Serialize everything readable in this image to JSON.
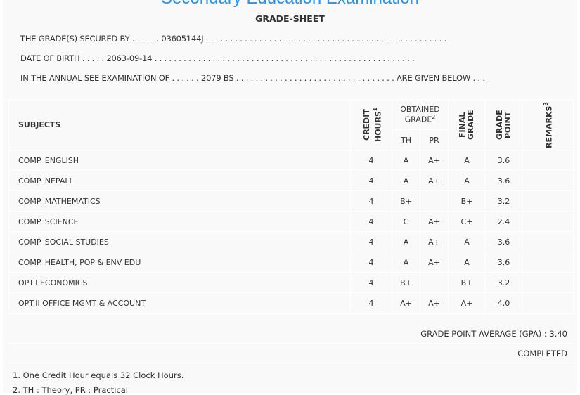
{
  "header": {
    "exam_title": "Secondary Education Examination",
    "sheet_title": "GRADE-SHEET"
  },
  "info": {
    "secured_by": "THE GRADE(S) SECURED BY . . . . . . 03605144J . . . . . . . . . . . . . . . . . . . . . . . . . . . . . . . . . . . . . . . . . . . . . . . . . .",
    "dob": "DATE OF BIRTH . . . . . 2063-09-14 . . . . . . . . . . . . . . . . . . . . . . . . . . . . . . . . . . . . . . . . . . . . . . . . . . . . . .",
    "exam": "IN THE ANNUAL SEE EXAMINATION OF . . . . . . 2079 BS . . . . . . . . . . . . . . . . . . . . . . . . . . . . . . . . . ARE GIVEN BELOW . . ."
  },
  "columns": {
    "subjects": "SUBJECTS",
    "credit": "CREDIT HOURS",
    "credit_sup": "1",
    "obtained": "OBTAINED GRADE",
    "obtained_sup": "2",
    "th": "TH",
    "pr": "PR",
    "final": "FINAL GRADE",
    "gp": "GRADE POINT",
    "remarks": "REMARKS",
    "remarks_sup": "3"
  },
  "rows": [
    {
      "subject": "COMP. ENGLISH",
      "credit": "4",
      "th": "A",
      "pr": "A+",
      "final": "A",
      "gp": "3.6",
      "remarks": ""
    },
    {
      "subject": "COMP. NEPALI",
      "credit": "4",
      "th": "A",
      "pr": "A+",
      "final": "A",
      "gp": "3.6",
      "remarks": ""
    },
    {
      "subject": "COMP. MATHEMATICS",
      "credit": "4",
      "th": "B+",
      "pr": "",
      "final": "B+",
      "gp": "3.2",
      "remarks": ""
    },
    {
      "subject": "COMP. SCIENCE",
      "credit": "4",
      "th": "C",
      "pr": "A+",
      "final": "C+",
      "gp": "2.4",
      "remarks": ""
    },
    {
      "subject": "COMP. SOCIAL STUDIES",
      "credit": "4",
      "th": "A",
      "pr": "A+",
      "final": "A",
      "gp": "3.6",
      "remarks": ""
    },
    {
      "subject": "COMP. HEALTH, POP & ENV EDU",
      "credit": "4",
      "th": "A",
      "pr": "A+",
      "final": "A",
      "gp": "3.6",
      "remarks": ""
    },
    {
      "subject": "OPT.I ECONOMICS",
      "credit": "4",
      "th": "B+",
      "pr": "",
      "final": "B+",
      "gp": "3.2",
      "remarks": ""
    },
    {
      "subject": "OPT.II OFFICE MGMT & ACCOUNT",
      "credit": "4",
      "th": "A+",
      "pr": "A+",
      "final": "A+",
      "gp": "4.0",
      "remarks": ""
    }
  ],
  "summary": {
    "gpa": "GRADE POINT AVERAGE (GPA) : 3.40",
    "status": "COMPLETED"
  },
  "notes": [
    "1. One Credit Hour equals 32 Clock Hours.",
    "2. TH : Theory, PR : Practical"
  ]
}
